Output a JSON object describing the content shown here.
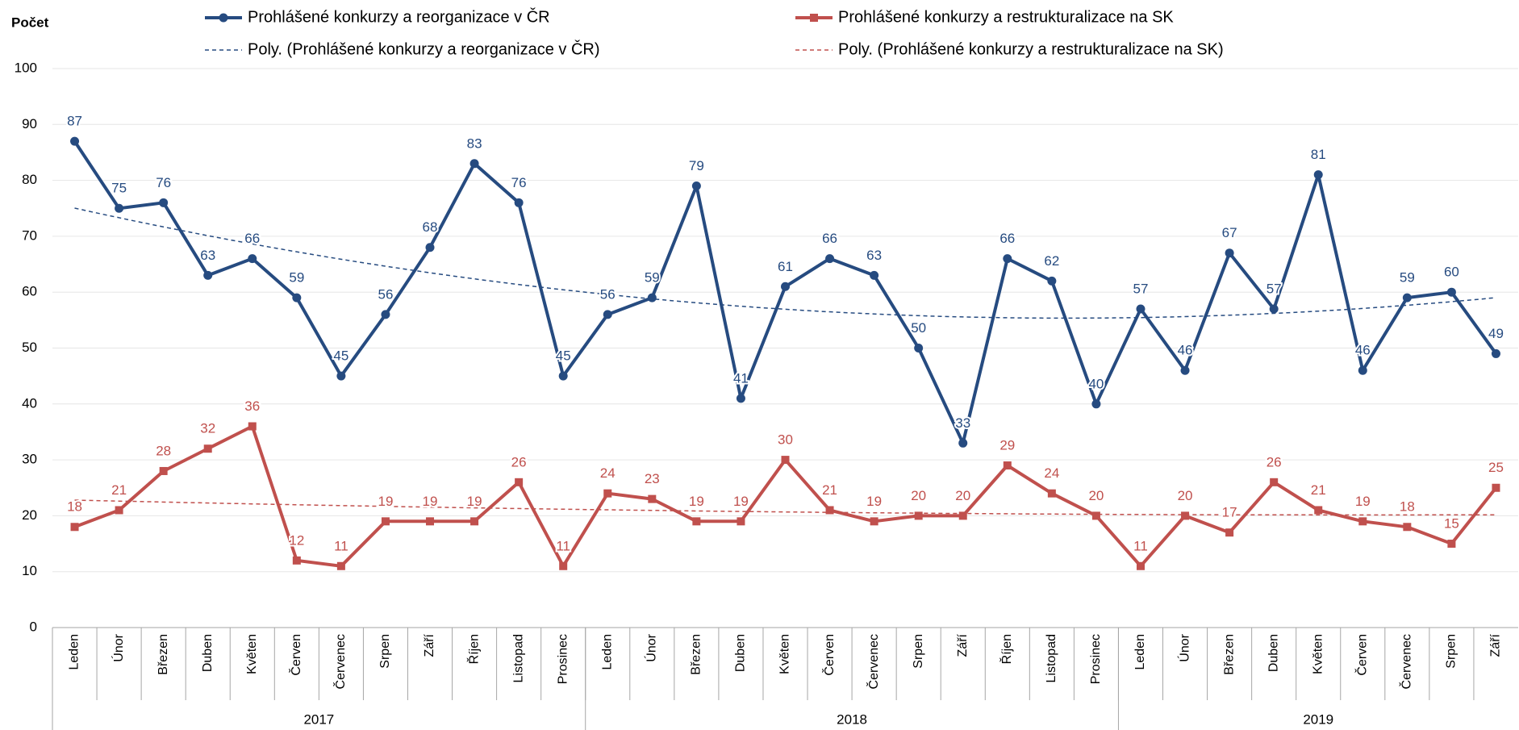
{
  "chart_data": {
    "type": "line",
    "y_label": "Počet",
    "groups": [
      {
        "label": "2017",
        "categories": [
          "Leden",
          "Únor",
          "Březen",
          "Duben",
          "Květen",
          "Červen",
          "Červenec",
          "Srpen",
          "Září",
          "Říjen",
          "Listopad",
          "Prosinec"
        ]
      },
      {
        "label": "2018",
        "categories": [
          "Leden",
          "Únor",
          "Březen",
          "Duben",
          "Květen",
          "Červen",
          "Červenec",
          "Srpen",
          "Září",
          "Říjen",
          "Listopad",
          "Prosinec"
        ]
      },
      {
        "label": "2019",
        "categories": [
          "Leden",
          "Únor",
          "Březen",
          "Duben",
          "Květen",
          "Červen",
          "Červenec",
          "Srpen",
          "Září"
        ]
      }
    ],
    "series": [
      {
        "name": "Prohlášené konkurzy a reorganizace v ČR",
        "color": "#264b80",
        "marker": "circle",
        "trendline": {
          "name": "Poly. (Prohlášené konkurzy a reorganizace v ČR)",
          "type": "polynomial",
          "order": 2
        },
        "values": [
          87,
          75,
          76,
          63,
          66,
          59,
          45,
          56,
          68,
          83,
          76,
          45,
          56,
          59,
          79,
          41,
          61,
          66,
          63,
          50,
          33,
          66,
          62,
          40,
          57,
          46,
          67,
          57,
          81,
          46,
          59,
          60,
          49
        ]
      },
      {
        "name": "Prohlášené konkurzy a restrukturalizace na SK",
        "color": "#c0504d",
        "marker": "square",
        "trendline": {
          "name": "Poly. (Prohlášené konkurzy a restrukturalizace na SK)",
          "type": "polynomial",
          "order": 2
        },
        "values": [
          18,
          21,
          28,
          32,
          36,
          12,
          11,
          19,
          19,
          19,
          26,
          11,
          24,
          23,
          19,
          19,
          30,
          21,
          19,
          20,
          20,
          29,
          24,
          20,
          11,
          20,
          17,
          26,
          21,
          19,
          18,
          15,
          25
        ]
      }
    ],
    "ylim": [
      0,
      100
    ],
    "yticks": [
      0,
      10,
      20,
      30,
      40,
      50,
      60,
      70,
      80,
      90,
      100
    ],
    "grid": true
  }
}
